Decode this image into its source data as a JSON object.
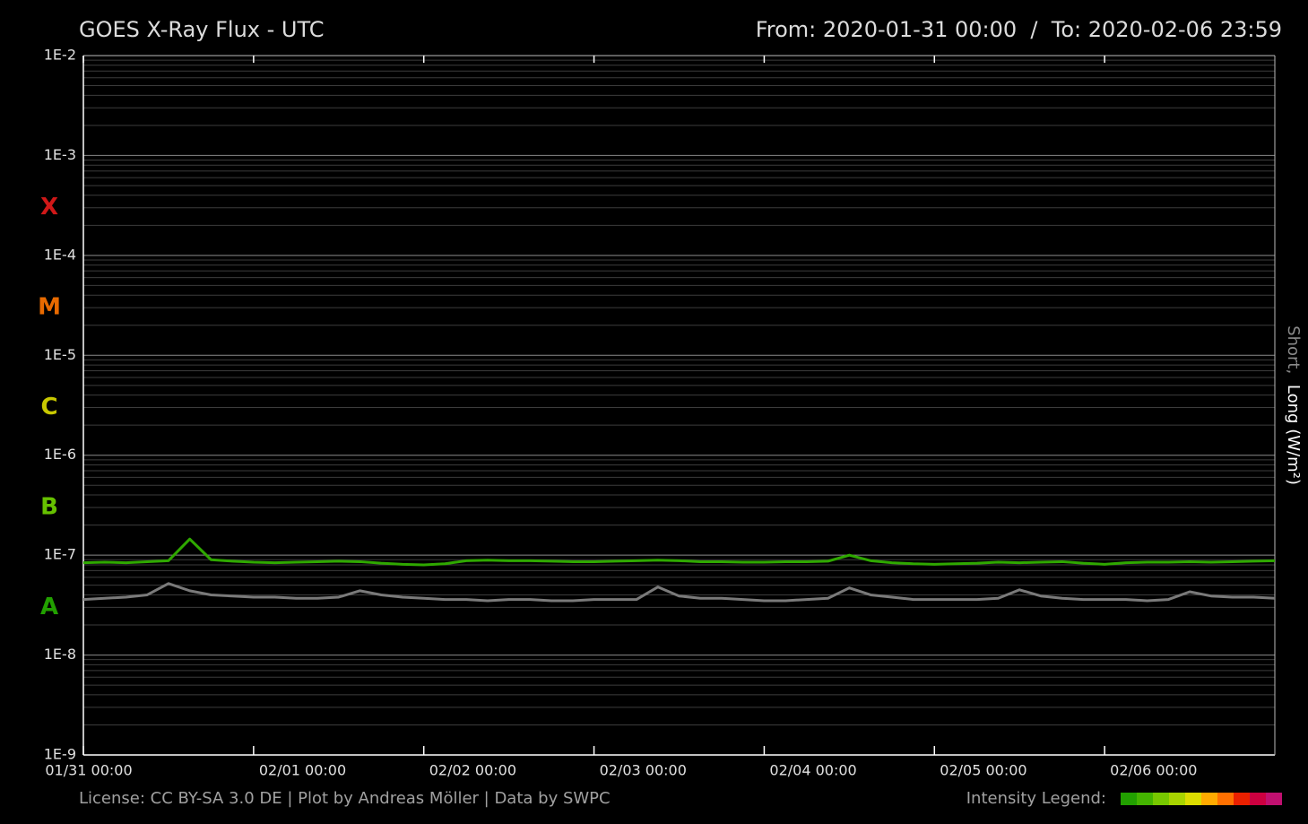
{
  "chart_data": {
    "type": "line",
    "title": "GOES X-Ray Flux - UTC",
    "subtitle": "From: 2020-01-31 00:00  /  To: 2020-02-06 23:59",
    "footer": "License: CC BY-SA 3.0 DE | Plot by Andreas Möller | Data by SWPC",
    "right_axis_label": [
      {
        "text": "Short,",
        "color": "#8a8a8a"
      },
      {
        "text": "Long (W/m²)",
        "color": "#ffffff"
      }
    ],
    "intensity_legend": {
      "label": "Intensity Legend:",
      "colors": [
        "#22a000",
        "#44b400",
        "#77c800",
        "#a8d400",
        "#dcdc00",
        "#ffaa00",
        "#ff7000",
        "#ea2000",
        "#cc0040",
        "#c01070"
      ]
    },
    "class_labels": [
      {
        "label": "X",
        "value": 0.0003,
        "color": "#d01818"
      },
      {
        "label": "M",
        "value": 3e-05,
        "color": "#e86a00"
      },
      {
        "label": "C",
        "value": 3e-06,
        "color": "#c8c800"
      },
      {
        "label": "B",
        "value": 3e-07,
        "color": "#66c000"
      },
      {
        "label": "A",
        "value": 3e-08,
        "color": "#22a000"
      }
    ],
    "log_y": true,
    "grid": true,
    "ylim": [
      1e-09,
      0.01
    ],
    "yticks": [
      {
        "value": 0.01,
        "label": "1E-2"
      },
      {
        "value": 0.001,
        "label": "1E-3"
      },
      {
        "value": 0.0001,
        "label": "1E-4"
      },
      {
        "value": 1e-05,
        "label": "1E-5"
      },
      {
        "value": 1e-06,
        "label": "1E-6"
      },
      {
        "value": 1e-07,
        "label": "1E-7"
      },
      {
        "value": 1e-08,
        "label": "1E-8"
      },
      {
        "value": 1e-09,
        "label": "1E-9"
      }
    ],
    "xlim": [
      0,
      168
    ],
    "xticks": [
      {
        "value": 0,
        "label": "01/31 00:00"
      },
      {
        "value": 24,
        "label": "02/01 00:00"
      },
      {
        "value": 48,
        "label": "02/02 00:00"
      },
      {
        "value": 72,
        "label": "02/03 00:00"
      },
      {
        "value": 96,
        "label": "02/04 00:00"
      },
      {
        "value": 120,
        "label": "02/05 00:00"
      },
      {
        "value": 144,
        "label": "02/06 00:00"
      }
    ],
    "x": [
      0,
      3,
      6,
      9,
      12,
      15,
      18,
      21,
      24,
      27,
      30,
      33,
      36,
      39,
      42,
      45,
      48,
      51,
      54,
      57,
      60,
      63,
      66,
      69,
      72,
      75,
      78,
      81,
      84,
      87,
      90,
      93,
      96,
      99,
      102,
      105,
      108,
      111,
      114,
      117,
      120,
      123,
      126,
      129,
      132,
      135,
      138,
      141,
      144,
      147,
      150,
      153,
      156,
      159,
      162,
      165,
      168
    ],
    "series": [
      {
        "color": "#2fa800",
        "values": [
          8.4e-08,
          8.5e-08,
          8.4e-08,
          8.6e-08,
          8.8e-08,
          1.45e-07,
          9e-08,
          8.7e-08,
          8.5e-08,
          8.4e-08,
          8.5e-08,
          8.6e-08,
          8.7e-08,
          8.6e-08,
          8.3e-08,
          8.1e-08,
          8e-08,
          8.2e-08,
          8.8e-08,
          8.9e-08,
          8.8e-08,
          8.8e-08,
          8.7e-08,
          8.6e-08,
          8.6e-08,
          8.7e-08,
          8.8e-08,
          8.9e-08,
          8.8e-08,
          8.6e-08,
          8.6e-08,
          8.5e-08,
          8.5e-08,
          8.6e-08,
          8.6e-08,
          8.7e-08,
          1e-07,
          8.8e-08,
          8.4e-08,
          8.2e-08,
          8.1e-08,
          8.2e-08,
          8.3e-08,
          8.5e-08,
          8.4e-08,
          8.5e-08,
          8.6e-08,
          8.3e-08,
          8.1e-08,
          8.4e-08,
          8.5e-08,
          8.5e-08,
          8.6e-08,
          8.5e-08,
          8.6e-08,
          8.7e-08,
          8.8e-08
        ]
      },
      {
        "color": "#7a7a7a",
        "values": [
          3.6e-08,
          3.7e-08,
          3.8e-08,
          4e-08,
          5.2e-08,
          4.4e-08,
          4e-08,
          3.9e-08,
          3.8e-08,
          3.8e-08,
          3.7e-08,
          3.7e-08,
          3.8e-08,
          4.4e-08,
          4e-08,
          3.8e-08,
          3.7e-08,
          3.6e-08,
          3.6e-08,
          3.5e-08,
          3.6e-08,
          3.6e-08,
          3.5e-08,
          3.5e-08,
          3.6e-08,
          3.6e-08,
          3.6e-08,
          4.8e-08,
          3.9e-08,
          3.7e-08,
          3.7e-08,
          3.6e-08,
          3.5e-08,
          3.5e-08,
          3.6e-08,
          3.7e-08,
          4.7e-08,
          4e-08,
          3.8e-08,
          3.6e-08,
          3.6e-08,
          3.6e-08,
          3.6e-08,
          3.7e-08,
          4.5e-08,
          3.9e-08,
          3.7e-08,
          3.6e-08,
          3.6e-08,
          3.6e-08,
          3.5e-08,
          3.6e-08,
          4.3e-08,
          3.9e-08,
          3.8e-08,
          3.8e-08,
          3.7e-08
        ]
      }
    ]
  }
}
